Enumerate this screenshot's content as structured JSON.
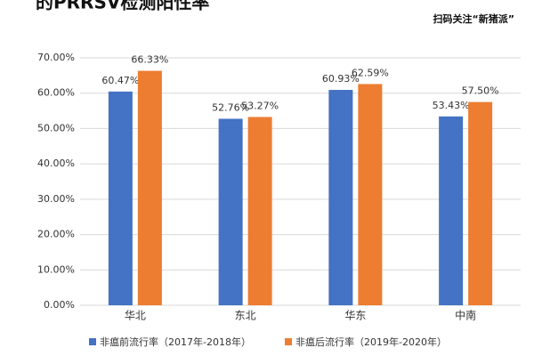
{
  "chart_data": {
    "type": "bar",
    "title": "的PRRSV检测阳性率",
    "subtitle": "扫码关注“新猪派”",
    "categories": [
      "华北",
      "东北",
      "华东",
      "中南"
    ],
    "series": [
      {
        "name": "非瘟前流行率（2017年-2018年）",
        "color": "#4472c4",
        "values": [
          60.47,
          52.76,
          60.93,
          53.43
        ],
        "value_labels": [
          "60.47%",
          "52.76%",
          "60.93%",
          "53.43%"
        ]
      },
      {
        "name": "非瘟后流行率（2019年-2020年）",
        "color": "#ed7d31",
        "values": [
          66.33,
          53.27,
          62.59,
          57.5
        ],
        "value_labels": [
          "66.33%",
          "53.27%",
          "62.59%",
          "57.50%"
        ]
      }
    ],
    "ylim": [
      0,
      70
    ],
    "yticks": [
      {
        "value": 0,
        "label": "0.00%"
      },
      {
        "value": 10,
        "label": "10.00%"
      },
      {
        "value": 20,
        "label": "20.00%"
      },
      {
        "value": 30,
        "label": "30.00%"
      },
      {
        "value": 40,
        "label": "40.00%"
      },
      {
        "value": 50,
        "label": "50.00%"
      },
      {
        "value": 60,
        "label": "60.00%"
      },
      {
        "value": 70,
        "label": "70.00%"
      }
    ],
    "grid": true
  }
}
